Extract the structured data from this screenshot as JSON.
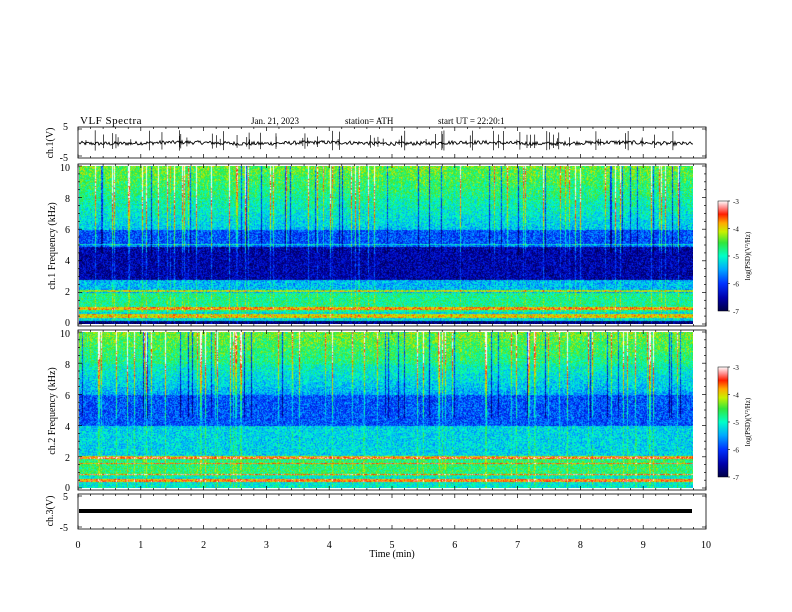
{
  "header": {
    "title": "VLF Spectra",
    "date": "Jan. 21, 2023",
    "station": "station= ATH",
    "start": "start UT = 22:20:1"
  },
  "chart_data": [
    {
      "type": "line",
      "name": "ch1-waveform",
      "ylabel": "ch.1(V)",
      "yticks": [
        "5",
        "-5"
      ],
      "ylim": [
        -5,
        5
      ],
      "xlim": [
        0,
        10
      ],
      "data_end_min": 9.8,
      "mean_level": 0,
      "noise_amplitude": 0.6
    },
    {
      "type": "heatmap",
      "name": "ch1-spectrogram",
      "ylabel": "ch.1 Frequency (kHz)",
      "ylim": [
        0,
        10
      ],
      "yticks": [
        "0",
        "2",
        "4",
        "6",
        "8",
        "10"
      ],
      "xlim": [
        0,
        10
      ],
      "data_end_min": 9.8,
      "colorbar": {
        "label": "log(PSD)(V²/Hz)",
        "ticks": [
          "-3",
          "-4",
          "-5",
          "-6",
          "-7"
        ],
        "range": [
          -7,
          -3
        ]
      }
    },
    {
      "type": "heatmap",
      "name": "ch2-spectrogram",
      "ylabel": "ch.2 Frequency (kHz)",
      "ylim": [
        0,
        10
      ],
      "yticks": [
        "0",
        "2",
        "4",
        "6",
        "8",
        "10"
      ],
      "xlim": [
        0,
        10
      ],
      "data_end_min": 9.8,
      "colorbar": {
        "label": "log(PSD)(V²/Hz)",
        "ticks": [
          "-3",
          "-4",
          "-5",
          "-6",
          "-7"
        ],
        "range": [
          -7,
          -3
        ]
      }
    },
    {
      "type": "line",
      "name": "ch3-waveform",
      "ylabel": "ch.3(V)",
      "yticks": [
        "5",
        "-5"
      ],
      "ylim": [
        -5,
        5
      ],
      "xlim": [
        0,
        10
      ],
      "data_end_min": 9.8,
      "mean_level": 0
    }
  ],
  "x_axis": {
    "label": "Time (min)",
    "ticks": [
      "0",
      "1",
      "2",
      "3",
      "4",
      "5",
      "6",
      "7",
      "8",
      "9",
      "10"
    ]
  }
}
